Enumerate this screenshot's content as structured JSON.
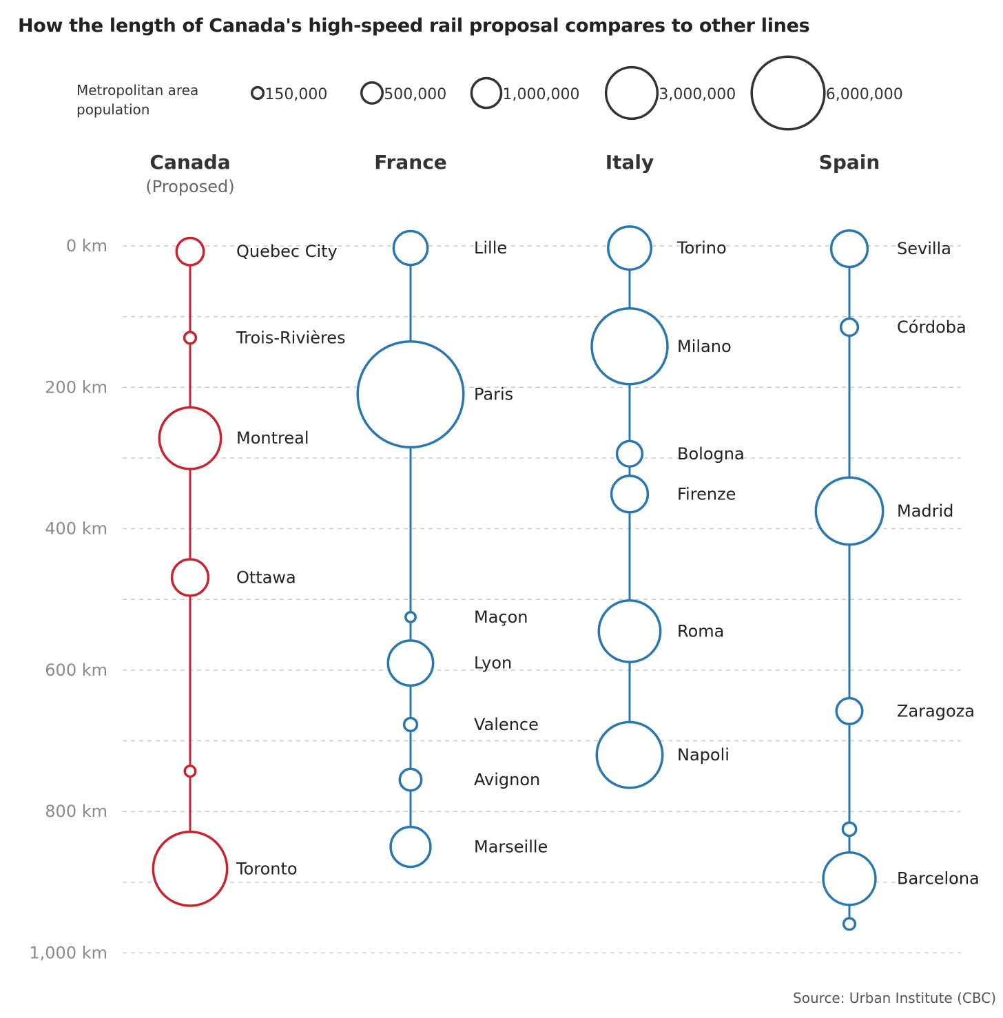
{
  "title": "How the length of Canada's high-speed rail proposal compares to other lines",
  "source": "Source: Urban Institute (CBC)",
  "colors": {
    "proposed": "#c8242f",
    "existing": "#2a77b0",
    "legend_stroke": "#333333",
    "grid": "#cccccc",
    "axis_text": "#8a8a8a"
  },
  "chart_data": {
    "type": "scatter",
    "title": "How the length of Canada's high-speed rail proposal compares to other lines",
    "ylabel": "",
    "y_unit": "km",
    "ylim": [
      0,
      1000
    ],
    "y_ticks": [
      {
        "value": 0,
        "label": "0 km"
      },
      {
        "value": 200,
        "label": "200 km"
      },
      {
        "value": 400,
        "label": "400 km"
      },
      {
        "value": 600,
        "label": "600 km"
      },
      {
        "value": 800,
        "label": "800 km"
      },
      {
        "value": 1000,
        "label": "1,000 km"
      }
    ],
    "grid_step": 100,
    "grid": true,
    "size_legend": {
      "title": [
        "Metropolitan area",
        "population"
      ],
      "entries": [
        {
          "population": 150000,
          "label": "150,000"
        },
        {
          "population": 500000,
          "label": "500,000"
        },
        {
          "population": 1000000,
          "label": "1,000,000"
        },
        {
          "population": 3000000,
          "label": "3,000,000"
        },
        {
          "population": 6000000,
          "label": "6,000,000"
        }
      ]
    },
    "series": [
      {
        "name": "Canada",
        "subtitle": "(Proposed)",
        "proposed": true,
        "stations": [
          {
            "city": "Quebec City",
            "km": 8,
            "population": 840000
          },
          {
            "city": "Trois-Rivières",
            "km": 130,
            "population": 150000
          },
          {
            "city": "Montreal",
            "km": 272,
            "population": 4300000
          },
          {
            "city": "Ottawa",
            "km": 469,
            "population": 1500000
          },
          {
            "city": "",
            "km": 743,
            "population": 130000
          },
          {
            "city": "Toronto",
            "km": 881,
            "population": 6200000
          }
        ]
      },
      {
        "name": "France",
        "subtitle": "",
        "proposed": false,
        "stations": [
          {
            "city": "Lille",
            "km": 3,
            "population": 1300000
          },
          {
            "city": "Paris",
            "km": 210,
            "population": 12700000
          },
          {
            "city": "Maçon",
            "km": 525,
            "population": 110000
          },
          {
            "city": "Lyon",
            "km": 590,
            "population": 2300000
          },
          {
            "city": "Valence",
            "km": 677,
            "population": 190000
          },
          {
            "city": "Avignon",
            "km": 755,
            "population": 530000
          },
          {
            "city": "Marseille",
            "km": 850,
            "population": 1800000
          }
        ]
      },
      {
        "name": "Italy",
        "subtitle": "",
        "proposed": false,
        "stations": [
          {
            "city": "Torino",
            "km": 3,
            "population": 2100000
          },
          {
            "city": "Milano",
            "km": 142,
            "population": 6500000
          },
          {
            "city": "Bologna",
            "km": 294,
            "population": 730000
          },
          {
            "city": "Firenze",
            "km": 351,
            "population": 1500000
          },
          {
            "city": "Roma",
            "km": 545,
            "population": 4300000
          },
          {
            "city": "Napoli",
            "km": 720,
            "population": 4900000
          }
        ]
      },
      {
        "name": "Spain",
        "subtitle": "",
        "proposed": false,
        "stations": [
          {
            "city": "Sevilla",
            "km": 4,
            "population": 1500000
          },
          {
            "city": "Córdoba",
            "km": 115,
            "population": 330000
          },
          {
            "city": "Madrid",
            "km": 375,
            "population": 5100000
          },
          {
            "city": "Zaragoza",
            "km": 658,
            "population": 760000
          },
          {
            "city": "",
            "km": 825,
            "population": 200000
          },
          {
            "city": "Barcelona",
            "km": 895,
            "population": 3100000
          },
          {
            "city": "",
            "km": 959,
            "population": 150000
          }
        ]
      }
    ]
  }
}
